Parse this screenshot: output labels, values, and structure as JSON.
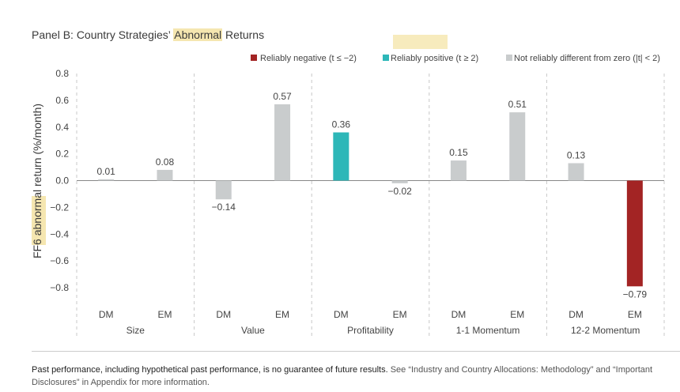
{
  "panel": {
    "title_pre": "Panel B: Country Strategies’ ",
    "title_highlight": "Abnormal",
    "title_post": " Returns"
  },
  "legend": [
    {
      "label": "Reliably negative (t ≤ −2)",
      "color": "#a32424"
    },
    {
      "label": "Reliably positive (t ≥ 2)",
      "color": "#2db7b8"
    },
    {
      "label": "Not reliably different from zero (|t| < 2)",
      "color": "#c9cccd"
    }
  ],
  "chart_data": {
    "type": "bar",
    "title": "Panel B: Country Strategies’ Abnormal Returns",
    "ylabel_pre": "FF6 ",
    "ylabel_highlight": "abnormal",
    "ylabel_post": " return (%/month)",
    "ylim": [
      -0.8,
      0.8
    ],
    "yticks": [
      "0.8",
      "0.6",
      "0.4",
      "0.2",
      "0.0",
      "−0.2",
      "−0.4",
      "−0.6",
      "−0.8"
    ],
    "ytick_values": [
      0.8,
      0.6,
      0.4,
      0.2,
      0.0,
      -0.2,
      -0.4,
      -0.6,
      -0.8
    ],
    "groups": [
      {
        "name": "Size",
        "bars": [
          {
            "category": "DM",
            "value": 0.01,
            "label": "0.01",
            "status": "neutral"
          },
          {
            "category": "EM",
            "value": 0.08,
            "label": "0.08",
            "status": "neutral"
          }
        ]
      },
      {
        "name": "Value",
        "bars": [
          {
            "category": "DM",
            "value": -0.14,
            "label": "−0.14",
            "status": "neutral"
          },
          {
            "category": "EM",
            "value": 0.57,
            "label": "0.57",
            "status": "neutral"
          }
        ]
      },
      {
        "name": "Profitability",
        "bars": [
          {
            "category": "DM",
            "value": 0.36,
            "label": "0.36",
            "status": "positive"
          },
          {
            "category": "EM",
            "value": -0.02,
            "label": "−0.02",
            "status": "neutral"
          }
        ]
      },
      {
        "name": "1-1 Momentum",
        "bars": [
          {
            "category": "DM",
            "value": 0.15,
            "label": "0.15",
            "status": "neutral"
          },
          {
            "category": "EM",
            "value": 0.51,
            "label": "0.51",
            "status": "neutral"
          }
        ]
      },
      {
        "name": "12-2 Momentum",
        "bars": [
          {
            "category": "DM",
            "value": 0.13,
            "label": "0.13",
            "status": "neutral"
          },
          {
            "category": "EM",
            "value": -0.79,
            "label": "−0.79",
            "status": "negative"
          }
        ]
      }
    ],
    "colors": {
      "negative": "#a32424",
      "positive": "#2db7b8",
      "neutral": "#c9cccd"
    }
  },
  "footnote": {
    "bold": "Past performance, including hypothetical past performance, is no guarantee of future results.",
    "rest": " See “Industry and Country Allocations: Methodology” and “Important Disclosures” in Appendix for more information."
  }
}
